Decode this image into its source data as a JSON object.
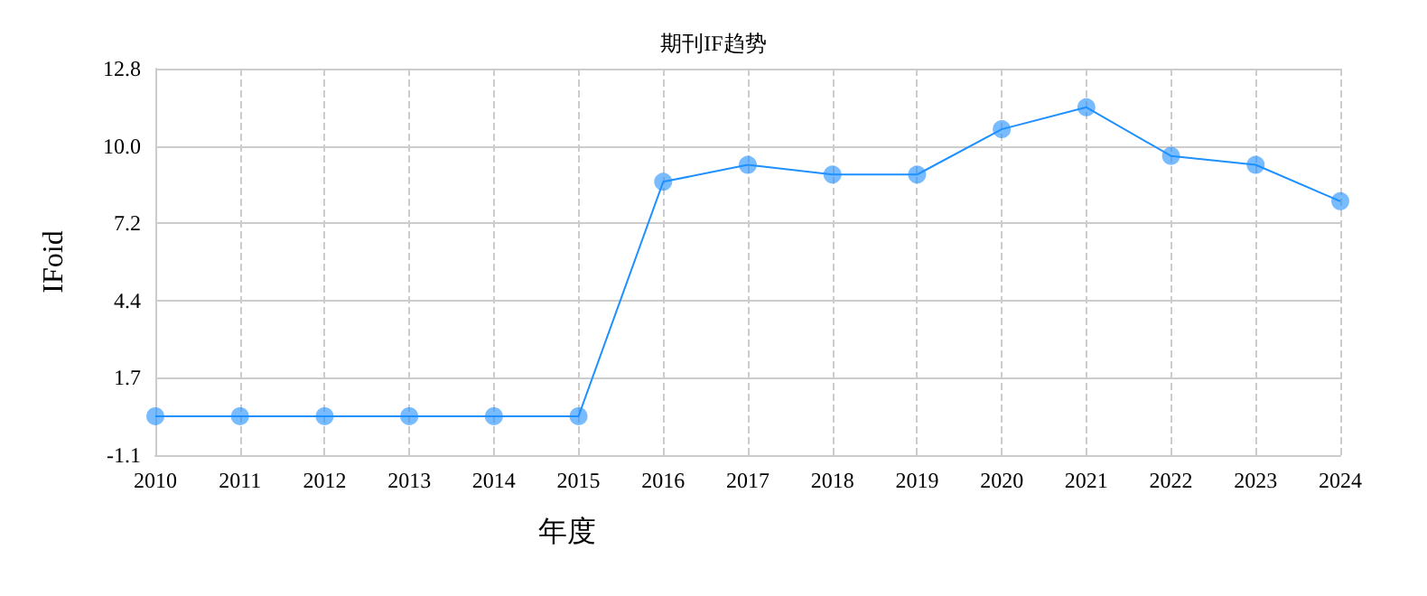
{
  "chart_data": {
    "type": "line",
    "title": "期刊IF趋势",
    "xlabel": "年度",
    "ylabel": "IFoid",
    "categories": [
      "2010",
      "2011",
      "2012",
      "2013",
      "2014",
      "2015",
      "2016",
      "2017",
      "2018",
      "2019",
      "2020",
      "2021",
      "2022",
      "2023",
      "2024"
    ],
    "series": [
      {
        "color": "#1e90ff",
        "values": [
          0.3,
          0.3,
          0.3,
          0.3,
          0.3,
          0.3,
          8.73,
          9.34,
          8.99,
          8.99,
          10.62,
          11.41,
          9.66,
          9.34,
          8.03
        ]
      }
    ],
    "ylim": [
      -1.1,
      12.8
    ],
    "yticks": [
      -1.1,
      1.7,
      4.4,
      7.2,
      {
        "value": 10,
        "label": "10.0"
      },
      12.8
    ],
    "grid": true,
    "marker": "circle",
    "line_style": "solid"
  }
}
